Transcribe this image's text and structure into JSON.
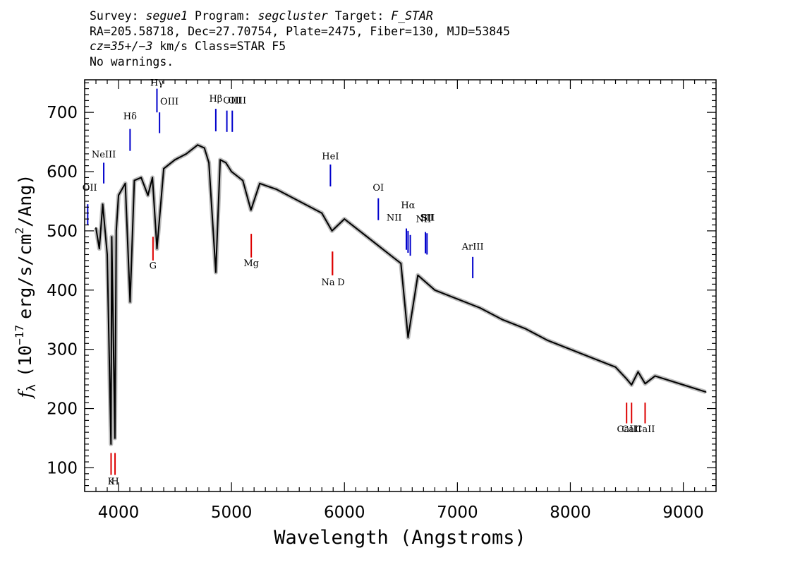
{
  "header": {
    "survey_label": "Survey:",
    "survey": "segue1",
    "program_label": "Program:",
    "program": "segcluster",
    "target_label": "Target:",
    "target": "F_STAR",
    "line2": "RA=205.58718, Dec=27.70754, Plate=2475, Fiber=130, MJD=53845",
    "cz": "cz=35+/−3",
    "line3_rest": "km/s Class=STAR F5",
    "line4": "No warnings."
  },
  "colors": {
    "emission": "#0000cc",
    "absorption": "#dd0000",
    "flux": "#000000",
    "error_band": "#bbbbbb"
  },
  "chart_data": {
    "type": "line",
    "xlabel": "Wavelength (Angstroms)",
    "ylabel_parts": [
      "f",
      "λ",
      "(10",
      "−17",
      "erg/s/cm",
      "2",
      "/Ang)"
    ],
    "xlim": [
      3700,
      9290
    ],
    "ylim": [
      60,
      755
    ],
    "xticks": [
      4000,
      5000,
      6000,
      7000,
      8000,
      9000
    ],
    "yticks": [
      100,
      200,
      300,
      400,
      500,
      600,
      700
    ],
    "series": [
      {
        "x": [
          3800,
          3830,
          3860,
          3900,
          3933,
          3940,
          3968,
          3980,
          4000,
          4060,
          4102,
          4140,
          4200,
          4260,
          4300,
          4340,
          4400,
          4500,
          4600,
          4700,
          4760,
          4800,
          4861,
          4900,
          4950,
          5000,
          5100,
          5172,
          5250,
          5400,
          5600,
          5800,
          5890,
          6000,
          6200,
          6400,
          6500,
          6563,
          6650,
          6800,
          7000,
          7200,
          7400,
          7600,
          7800,
          8000,
          8200,
          8400,
          8498,
          8542,
          8600,
          8662,
          8750,
          9000,
          9200
        ],
        "y": [
          505,
          470,
          545,
          460,
          140,
          490,
          150,
          500,
          560,
          580,
          380,
          585,
          590,
          560,
          590,
          470,
          605,
          620,
          630,
          645,
          640,
          615,
          430,
          620,
          615,
          600,
          585,
          535,
          580,
          570,
          550,
          530,
          500,
          520,
          490,
          460,
          445,
          320,
          425,
          400,
          385,
          370,
          350,
          335,
          315,
          300,
          285,
          270,
          250,
          240,
          262,
          242,
          255,
          240,
          228
        ]
      }
    ],
    "emission_lines": [
      {
        "label": "OII",
        "x": 3727,
        "lx": 3745,
        "ly": 568,
        "y0": 510,
        "y1": 545
      },
      {
        "label": "NeIII",
        "x": 3869,
        "lx": 3869,
        "ly": 624,
        "y0": 580,
        "y1": 615
      },
      {
        "label": "Hδ",
        "x": 4102,
        "lx": 4102,
        "ly": 688,
        "y0": 635,
        "y1": 672
      },
      {
        "label": "Hγ",
        "x": 4340,
        "lx": 4340,
        "ly": 745,
        "y0": 700,
        "y1": 740
      },
      {
        "label": "OIII",
        "x": 4363,
        "lx": 4450,
        "ly": 713,
        "y0": 665,
        "y1": 700
      },
      {
        "label": "Hβ",
        "x": 4861,
        "lx": 4861,
        "ly": 718,
        "y0": 668,
        "y1": 706
      },
      {
        "label": "OIII",
        "x": 4959,
        "lx": 5050,
        "ly": 715,
        "y0": 667,
        "y1": 703
      },
      {
        "label": "OIII",
        "x": 5007,
        "lx": 5007,
        "ly": 715,
        "y0": 667,
        "y1": 703
      },
      {
        "label": "HeI",
        "x": 5876,
        "lx": 5876,
        "ly": 621,
        "y0": 575,
        "y1": 612
      },
      {
        "label": "OI",
        "x": 6300,
        "lx": 6300,
        "ly": 568,
        "y0": 518,
        "y1": 555
      },
      {
        "label": "NII",
        "x": 6548,
        "lx": 6440,
        "ly": 517,
        "y0": 468,
        "y1": 504
      },
      {
        "label": "Hα",
        "x": 6563,
        "lx": 6563,
        "ly": 538,
        "y0": 463,
        "y1": 500
      },
      {
        "label": "NII",
        "x": 6583,
        "lx": 6700,
        "ly": 515,
        "y0": 458,
        "y1": 493
      },
      {
        "label": "SII",
        "x": 6717,
        "lx": 6730,
        "ly": 517,
        "y0": 462,
        "y1": 498
      },
      {
        "label": "SII",
        "x": 6731,
        "lx": 6740,
        "ly": 517,
        "y0": 460,
        "y1": 496
      },
      {
        "label": "ArIII",
        "x": 7136,
        "lx": 7136,
        "ly": 468,
        "y0": 420,
        "y1": 456
      }
    ],
    "absorption_lines": [
      {
        "label": "K",
        "x": 3934,
        "lx": 3934,
        "ly": 72,
        "y0": 88,
        "y1": 125
      },
      {
        "label": "H",
        "x": 3969,
        "lx": 3969,
        "ly": 72,
        "y0": 88,
        "y1": 125
      },
      {
        "label": "G",
        "x": 4305,
        "lx": 4305,
        "ly": 436,
        "y0": 450,
        "y1": 490
      },
      {
        "label": "Mg",
        "x": 5175,
        "lx": 5175,
        "ly": 440,
        "y0": 455,
        "y1": 495
      },
      {
        "label": "Na",
        "x": 5894,
        "lx": 5855,
        "ly": 408,
        "y0": 425,
        "y1": 465
      },
      {
        "label": "D",
        "x": 5894,
        "lx": 5970,
        "ly": 408,
        "y0": 425,
        "y1": 465
      },
      {
        "label": "CaII",
        "x": 8498,
        "lx": 8500,
        "ly": 160,
        "y0": 175,
        "y1": 210
      },
      {
        "label": "CaII",
        "x": 8542,
        "lx": 8542,
        "ly": 160,
        "y0": 175,
        "y1": 210
      },
      {
        "label": "CaII",
        "x": 8662,
        "lx": 8662,
        "ly": 160,
        "y0": 175,
        "y1": 210
      }
    ]
  }
}
